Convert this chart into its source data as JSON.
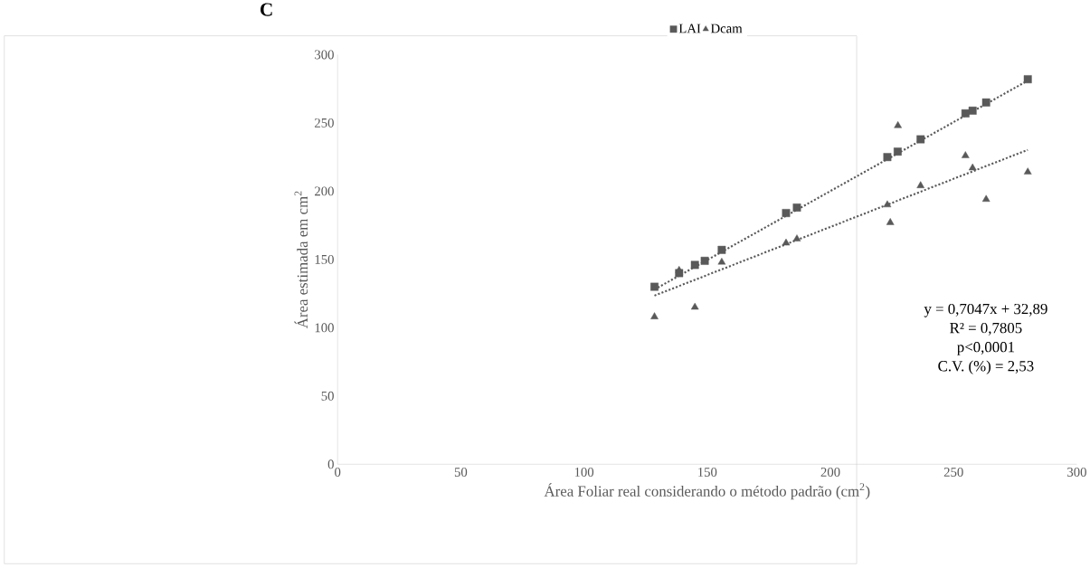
{
  "chart_data": {
    "type": "scatter",
    "title": "C",
    "xlabel": "Área Foliar real considerando o método padrão (cm$^{2}$)",
    "ylabel": "Área estimada em cm$^{2}$",
    "xlim": [
      0,
      300
    ],
    "xticks": [
      0,
      50,
      100,
      150,
      200,
      250,
      300
    ],
    "ylim": [
      0,
      300
    ],
    "yticks": [
      0,
      50,
      100,
      150,
      200,
      250,
      300
    ],
    "grid": false,
    "legend": "top",
    "series": [
      {
        "name": "LAI",
        "color": "#595959",
        "marker": "square",
        "x": [
          128.6,
          138.6,
          145.0,
          149.0,
          155.9,
          182.0,
          186.4,
          223.1,
          227.3,
          236.6,
          254.8,
          257.7,
          263.2,
          280.1
        ],
        "values": [
          130,
          140,
          146,
          149,
          157,
          184,
          188,
          225,
          229,
          238,
          257,
          259,
          265,
          282
        ]
      },
      {
        "name": "Dcam",
        "color": "#595959",
        "marker": "triangle",
        "x": [
          128.6,
          138.6,
          145.0,
          155.9,
          182.0,
          186.4,
          223.1,
          224.3,
          227.4,
          236.6,
          254.8,
          257.7,
          263.2,
          280.1
        ],
        "values": [
          108,
          142,
          115,
          148,
          162,
          165,
          190,
          177,
          248,
          204,
          226,
          217,
          194,
          214
        ]
      },
      {
        "type": "line",
        "color": "#595959",
        "line_style": "dotted",
        "marker": "none",
        "x": [
          128.6,
          280.1
        ],
        "values": [
          128,
          281
        ]
      },
      {
        "type": "line",
        "color": "#595959",
        "line_style": "dotted",
        "marker": "none",
        "x": [
          128.6,
          280.1
        ],
        "values": [
          123.5,
          230.3
        ]
      }
    ],
    "annotations": [
      "y = 0,7047x + 32,89",
      "R² = 0,7805",
      "p<0,0001",
      "C.V. (%) = 2,53"
    ]
  }
}
